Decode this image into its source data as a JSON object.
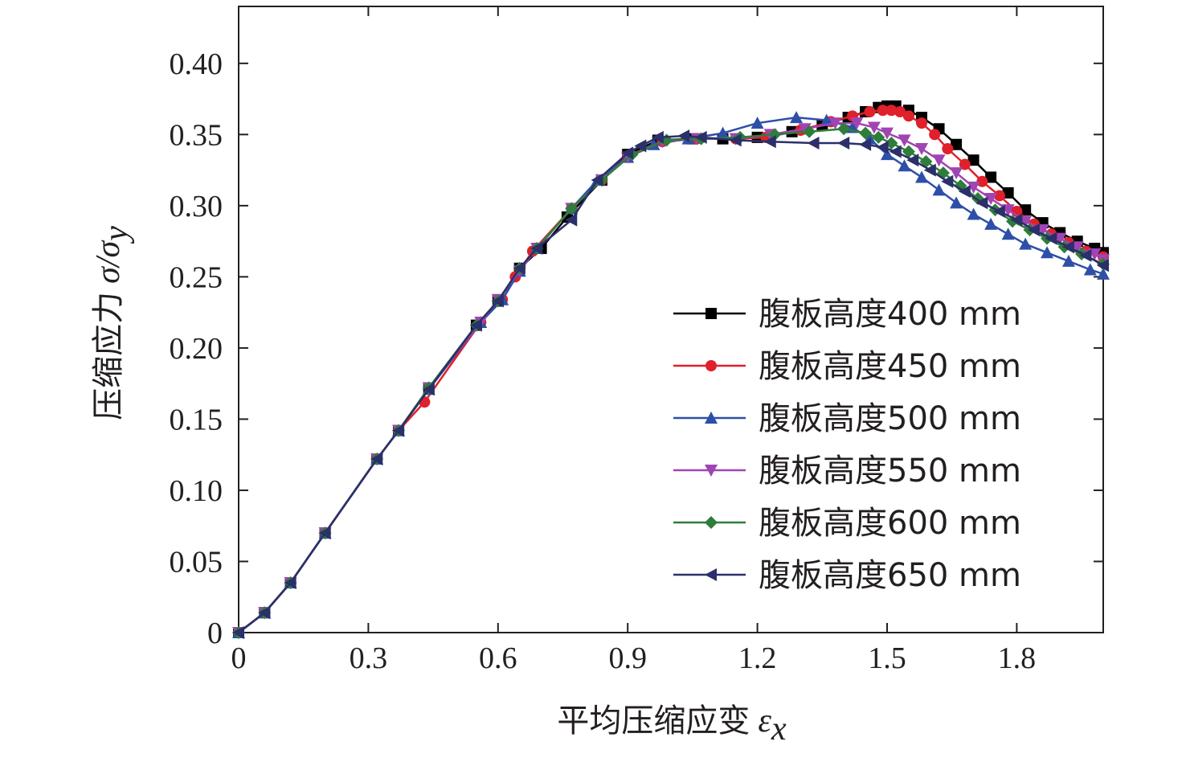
{
  "chart_data": {
    "type": "line",
    "xlabel": "平均压缩应变",
    "xlabel_symbol": "ε",
    "xlabel_sub": "x",
    "ylabel": "压缩应力",
    "ylabel_symbol": "σ/σ",
    "ylabel_sub": "y",
    "xlim": [
      0,
      2.0
    ],
    "ylim": [
      0,
      0.44
    ],
    "xticks": [
      0,
      0.3,
      0.6,
      0.9,
      1.2,
      1.5,
      1.8
    ],
    "xtick_labels": [
      "0",
      "0.3",
      "0.6",
      "0.9",
      "1.2",
      "1.5",
      "1.8"
    ],
    "yticks": [
      0,
      0.05,
      0.1,
      0.15,
      0.2,
      0.25,
      0.3,
      0.35,
      0.4
    ],
    "ytick_labels": [
      "0",
      "0.05",
      "0.10",
      "0.15",
      "0.20",
      "0.25",
      "0.30",
      "0.35",
      "0.40"
    ],
    "grid": false,
    "legend_position": "right",
    "series": [
      {
        "name": "腹板高度400 mm",
        "color": "#000000",
        "marker": "square",
        "x": [
          0,
          0.06,
          0.12,
          0.2,
          0.32,
          0.37,
          0.44,
          0.55,
          0.6,
          0.65,
          0.7,
          0.76,
          0.84,
          0.9,
          0.97,
          1.05,
          1.12,
          1.2,
          1.28,
          1.35,
          1.41,
          1.45,
          1.48,
          1.5,
          1.52,
          1.55,
          1.58,
          1.62,
          1.66,
          1.7,
          1.74,
          1.78,
          1.82,
          1.86,
          1.9,
          1.94,
          1.98,
          2.0
        ],
        "y": [
          0,
          0.014,
          0.035,
          0.07,
          0.122,
          0.142,
          0.172,
          0.216,
          0.233,
          0.256,
          0.27,
          0.292,
          0.318,
          0.336,
          0.346,
          0.347,
          0.347,
          0.348,
          0.352,
          0.357,
          0.362,
          0.366,
          0.369,
          0.37,
          0.37,
          0.367,
          0.362,
          0.354,
          0.343,
          0.332,
          0.32,
          0.309,
          0.297,
          0.288,
          0.281,
          0.275,
          0.27,
          0.267
        ]
      },
      {
        "name": "腹板高度450 mm",
        "color": "#e0202a",
        "marker": "circle",
        "x": [
          0,
          0.06,
          0.12,
          0.2,
          0.32,
          0.37,
          0.43,
          0.56,
          0.61,
          0.64,
          0.68,
          0.77,
          0.84,
          0.9,
          0.98,
          1.06,
          1.15,
          1.22,
          1.3,
          1.37,
          1.42,
          1.46,
          1.49,
          1.51,
          1.53,
          1.55,
          1.58,
          1.61,
          1.64,
          1.68,
          1.72,
          1.76,
          1.8,
          1.84,
          1.88,
          1.92,
          1.96,
          2.0
        ],
        "y": [
          0,
          0.014,
          0.035,
          0.07,
          0.122,
          0.142,
          0.162,
          0.218,
          0.234,
          0.25,
          0.268,
          0.298,
          0.318,
          0.335,
          0.345,
          0.347,
          0.347,
          0.348,
          0.353,
          0.359,
          0.363,
          0.366,
          0.367,
          0.367,
          0.366,
          0.363,
          0.358,
          0.35,
          0.34,
          0.329,
          0.317,
          0.307,
          0.296,
          0.287,
          0.28,
          0.274,
          0.268,
          0.264
        ]
      },
      {
        "name": "腹板高度500 mm",
        "color": "#2e4fa8",
        "marker": "triangle-up",
        "x": [
          0,
          0.06,
          0.12,
          0.2,
          0.32,
          0.37,
          0.44,
          0.56,
          0.61,
          0.65,
          0.69,
          0.77,
          0.83,
          0.9,
          0.96,
          1.04,
          1.12,
          1.2,
          1.29,
          1.36,
          1.42,
          1.46,
          1.5,
          1.54,
          1.58,
          1.62,
          1.66,
          1.7,
          1.74,
          1.78,
          1.82,
          1.87,
          1.92,
          1.97,
          2.0
        ],
        "y": [
          0,
          0.014,
          0.035,
          0.07,
          0.122,
          0.142,
          0.171,
          0.218,
          0.234,
          0.254,
          0.27,
          0.298,
          0.318,
          0.334,
          0.343,
          0.347,
          0.351,
          0.358,
          0.362,
          0.36,
          0.355,
          0.347,
          0.336,
          0.328,
          0.32,
          0.311,
          0.302,
          0.294,
          0.287,
          0.28,
          0.273,
          0.267,
          0.261,
          0.255,
          0.252
        ]
      },
      {
        "name": "腹板高度550 mm",
        "color": "#a044b4",
        "marker": "triangle-down",
        "x": [
          0,
          0.06,
          0.12,
          0.2,
          0.32,
          0.37,
          0.44,
          0.56,
          0.6,
          0.65,
          0.69,
          0.77,
          0.84,
          0.9,
          0.98,
          1.06,
          1.15,
          1.23,
          1.31,
          1.38,
          1.43,
          1.47,
          1.5,
          1.54,
          1.58,
          1.62,
          1.66,
          1.7,
          1.74,
          1.78,
          1.82,
          1.86,
          1.9,
          1.94,
          1.98,
          2.0
        ],
        "y": [
          0,
          0.014,
          0.035,
          0.07,
          0.122,
          0.142,
          0.172,
          0.218,
          0.234,
          0.254,
          0.27,
          0.298,
          0.318,
          0.334,
          0.345,
          0.347,
          0.347,
          0.35,
          0.354,
          0.358,
          0.358,
          0.355,
          0.351,
          0.346,
          0.34,
          0.332,
          0.323,
          0.313,
          0.305,
          0.297,
          0.289,
          0.283,
          0.277,
          0.271,
          0.266,
          0.262
        ]
      },
      {
        "name": "腹板高度600 mm",
        "color": "#2f7d3a",
        "marker": "diamond",
        "x": [
          0,
          0.06,
          0.12,
          0.2,
          0.32,
          0.37,
          0.44,
          0.55,
          0.6,
          0.65,
          0.69,
          0.77,
          0.84,
          0.91,
          0.99,
          1.07,
          1.16,
          1.24,
          1.32,
          1.4,
          1.45,
          1.48,
          1.51,
          1.55,
          1.59,
          1.63,
          1.67,
          1.71,
          1.75,
          1.79,
          1.83,
          1.87,
          1.91,
          1.95,
          2.0
        ],
        "y": [
          0,
          0.014,
          0.035,
          0.07,
          0.122,
          0.142,
          0.172,
          0.216,
          0.233,
          0.256,
          0.27,
          0.298,
          0.318,
          0.336,
          0.346,
          0.347,
          0.348,
          0.35,
          0.352,
          0.354,
          0.351,
          0.348,
          0.344,
          0.338,
          0.331,
          0.323,
          0.314,
          0.305,
          0.297,
          0.289,
          0.283,
          0.277,
          0.271,
          0.266,
          0.259
        ]
      },
      {
        "name": "腹板高度650 mm",
        "color": "#2b2f6a",
        "marker": "triangle-left",
        "x": [
          0,
          0.06,
          0.12,
          0.2,
          0.32,
          0.37,
          0.44,
          0.55,
          0.6,
          0.65,
          0.69,
          0.77,
          0.83,
          0.9,
          0.93,
          0.97,
          1.03,
          1.07,
          1.15,
          1.23,
          1.33,
          1.4,
          1.45,
          1.49,
          1.52,
          1.56,
          1.6,
          1.64,
          1.68,
          1.72,
          1.76,
          1.8,
          1.84,
          1.88,
          1.92,
          1.96,
          2.0
        ],
        "y": [
          0,
          0.014,
          0.035,
          0.07,
          0.122,
          0.142,
          0.171,
          0.216,
          0.233,
          0.256,
          0.27,
          0.29,
          0.318,
          0.337,
          0.342,
          0.348,
          0.349,
          0.348,
          0.346,
          0.345,
          0.344,
          0.344,
          0.343,
          0.341,
          0.338,
          0.332,
          0.325,
          0.317,
          0.31,
          0.302,
          0.296,
          0.29,
          0.283,
          0.277,
          0.271,
          0.265,
          0.258
        ]
      }
    ]
  }
}
